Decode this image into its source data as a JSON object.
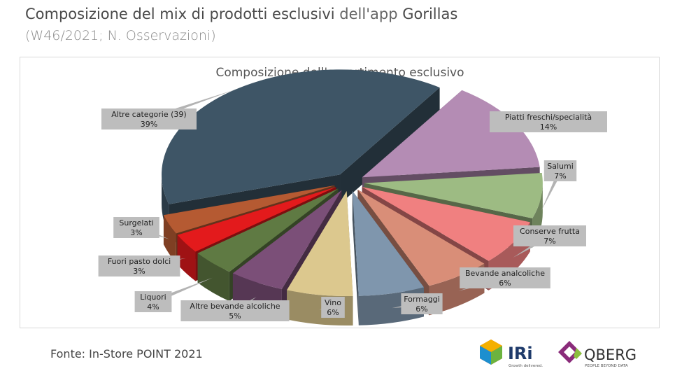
{
  "header": {
    "title_bold_1": "Composizione del mix di prodotti esclusivi",
    "title_light": " dell'app ",
    "title_bold_2": "Gorillas",
    "subtitle": "(W46/2021; N. Osservazioni)"
  },
  "chart_data": {
    "type": "pie",
    "title": "Composizione dell'assortimento esclusivo",
    "slices": [
      {
        "label": "Piatti freschi/specialità",
        "value": 14,
        "pct": "14%",
        "color": "#b48cb4"
      },
      {
        "label": "Salumi",
        "value": 7,
        "pct": "7%",
        "color": "#9dbb83"
      },
      {
        "label": "Conserve frutta",
        "value": 7,
        "pct": "7%",
        "color": "#f08080"
      },
      {
        "label": "Bevande analcoliche",
        "value": 6,
        "pct": "6%",
        "color": "#d98e78"
      },
      {
        "label": "Formaggi",
        "value": 6,
        "pct": "6%",
        "color": "#7f96ad"
      },
      {
        "label": "Vino",
        "value": 6,
        "pct": "6%",
        "color": "#dcc88e"
      },
      {
        "label": "Altre bevande alcoliche",
        "value": 5,
        "pct": "5%",
        "color": "#7b4f78"
      },
      {
        "label": "Liquori",
        "value": 4,
        "pct": "4%",
        "color": "#5f7a43"
      },
      {
        "label": "Fuori pasto dolci",
        "value": 3,
        "pct": "3%",
        "color": "#e31a1c"
      },
      {
        "label": "Surgelati",
        "value": 3,
        "pct": "3%",
        "color": "#b55a32"
      },
      {
        "label": "Altre categorie (39)",
        "value": 39,
        "pct": "39%",
        "color": "#3e5566"
      }
    ],
    "legend": "none"
  },
  "footer": {
    "source": "Fonte: In-Store POINT 2021",
    "logo_iri_text": "IRi",
    "logo_iri_tagline": "Growth delivered.",
    "logo_qberg_text": "QBERG",
    "logo_qberg_tagline": "PEOPLE BEYOND DATA"
  }
}
